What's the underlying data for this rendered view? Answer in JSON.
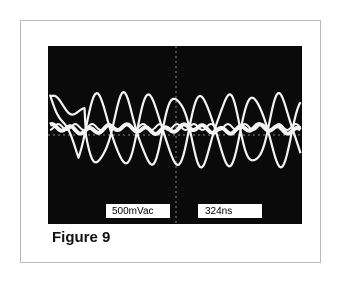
{
  "figure": {
    "labels": [
      "500mVac",
      "324ns"
    ],
    "caption": "Figure 9"
  }
}
